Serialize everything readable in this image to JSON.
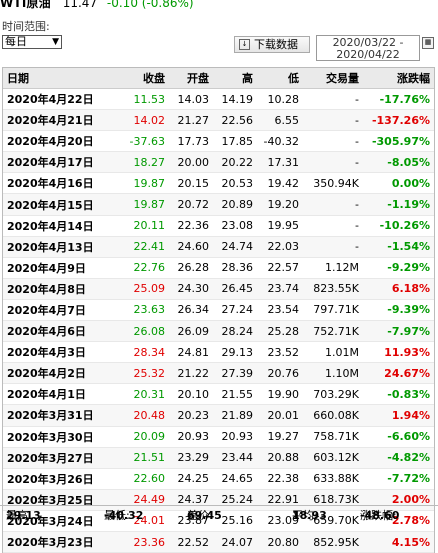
{
  "header": {
    "name": "WTI原油",
    "price": "11.47",
    "change": "-0.10 (-0.86%)"
  },
  "controls": {
    "range_label": "时间范围:",
    "period": "每日",
    "download_label": "下载数据",
    "date_from": "2020/03/22 -",
    "date_to": "2020/04/22"
  },
  "table": {
    "columns": [
      "日期",
      "收盘",
      "开盘",
      "高",
      "低",
      "交易量",
      "涨跌幅"
    ],
    "rows": [
      {
        "date": "2020年4月22日",
        "close": "11.53",
        "open": "14.03",
        "high": "14.19",
        "low": "10.28",
        "vol": "-",
        "pct": "-17.76%",
        "dir": "down"
      },
      {
        "date": "2020年4月21日",
        "close": "14.02",
        "open": "21.27",
        "high": "22.56",
        "low": "6.55",
        "vol": "-",
        "pct": "-137.26%",
        "dir": "up"
      },
      {
        "date": "2020年4月20日",
        "close": "-37.63",
        "open": "17.73",
        "high": "17.85",
        "low": "-40.32",
        "vol": "-",
        "pct": "-305.97%",
        "dir": "down"
      },
      {
        "date": "2020年4月17日",
        "close": "18.27",
        "open": "20.00",
        "high": "20.22",
        "low": "17.31",
        "vol": "-",
        "pct": "-8.05%",
        "dir": "down"
      },
      {
        "date": "2020年4月16日",
        "close": "19.87",
        "open": "20.15",
        "high": "20.53",
        "low": "19.42",
        "vol": "350.94K",
        "pct": "0.00%",
        "dir": "flat"
      },
      {
        "date": "2020年4月15日",
        "close": "19.87",
        "open": "20.72",
        "high": "20.89",
        "low": "19.20",
        "vol": "-",
        "pct": "-1.19%",
        "dir": "down"
      },
      {
        "date": "2020年4月14日",
        "close": "20.11",
        "open": "22.36",
        "high": "23.08",
        "low": "19.95",
        "vol": "-",
        "pct": "-10.26%",
        "dir": "down"
      },
      {
        "date": "2020年4月13日",
        "close": "22.41",
        "open": "24.60",
        "high": "24.74",
        "low": "22.03",
        "vol": "-",
        "pct": "-1.54%",
        "dir": "down"
      },
      {
        "date": "2020年4月9日",
        "close": "22.76",
        "open": "26.28",
        "high": "28.36",
        "low": "22.57",
        "vol": "1.12M",
        "pct": "-9.29%",
        "dir": "down"
      },
      {
        "date": "2020年4月8日",
        "close": "25.09",
        "open": "24.30",
        "high": "26.45",
        "low": "23.74",
        "vol": "823.55K",
        "pct": "6.18%",
        "dir": "up"
      },
      {
        "date": "2020年4月7日",
        "close": "23.63",
        "open": "26.34",
        "high": "27.24",
        "low": "23.54",
        "vol": "797.71K",
        "pct": "-9.39%",
        "dir": "down"
      },
      {
        "date": "2020年4月6日",
        "close": "26.08",
        "open": "26.09",
        "high": "28.24",
        "low": "25.28",
        "vol": "752.71K",
        "pct": "-7.97%",
        "dir": "down"
      },
      {
        "date": "2020年4月3日",
        "close": "28.34",
        "open": "24.81",
        "high": "29.13",
        "low": "23.52",
        "vol": "1.01M",
        "pct": "11.93%",
        "dir": "up"
      },
      {
        "date": "2020年4月2日",
        "close": "25.32",
        "open": "21.22",
        "high": "27.39",
        "low": "20.76",
        "vol": "1.10M",
        "pct": "24.67%",
        "dir": "up"
      },
      {
        "date": "2020年4月1日",
        "close": "20.31",
        "open": "20.10",
        "high": "21.55",
        "low": "19.90",
        "vol": "703.29K",
        "pct": "-0.83%",
        "dir": "down"
      },
      {
        "date": "2020年3月31日",
        "close": "20.48",
        "open": "20.23",
        "high": "21.89",
        "low": "20.01",
        "vol": "660.08K",
        "pct": "1.94%",
        "dir": "up"
      },
      {
        "date": "2020年3月30日",
        "close": "20.09",
        "open": "20.93",
        "high": "20.93",
        "low": "19.27",
        "vol": "758.71K",
        "pct": "-6.60%",
        "dir": "down"
      },
      {
        "date": "2020年3月27日",
        "close": "21.51",
        "open": "23.29",
        "high": "23.44",
        "low": "20.88",
        "vol": "603.12K",
        "pct": "-4.82%",
        "dir": "down"
      },
      {
        "date": "2020年3月26日",
        "close": "22.60",
        "open": "24.25",
        "high": "24.65",
        "low": "22.38",
        "vol": "633.88K",
        "pct": "-7.72%",
        "dir": "down"
      },
      {
        "date": "2020年3月25日",
        "close": "24.49",
        "open": "24.37",
        "high": "25.24",
        "low": "22.91",
        "vol": "618.73K",
        "pct": "2.00%",
        "dir": "up"
      },
      {
        "date": "2020年3月24日",
        "close": "24.01",
        "open": "23.87",
        "high": "25.16",
        "low": "23.09",
        "vol": "659.70K",
        "pct": "2.78%",
        "dir": "up"
      },
      {
        "date": "2020年3月23日",
        "close": "23.36",
        "open": "22.52",
        "high": "24.07",
        "low": "20.80",
        "vol": "852.95K",
        "pct": "4.15%",
        "dir": "up"
      }
    ]
  },
  "footer": {
    "high_label": "最高:",
    "high_value": "29.13",
    "low_label": "最低:",
    "low_value": "-40.32",
    "diff_label": "差价:",
    "diff_value": "69.45",
    "avg_label": "平均:",
    "avg_value": "18.93",
    "change_label": "涨跌幅:",
    "change_value": "-48.60"
  },
  "colors": {
    "up": "#e00000",
    "down": "#009900"
  }
}
